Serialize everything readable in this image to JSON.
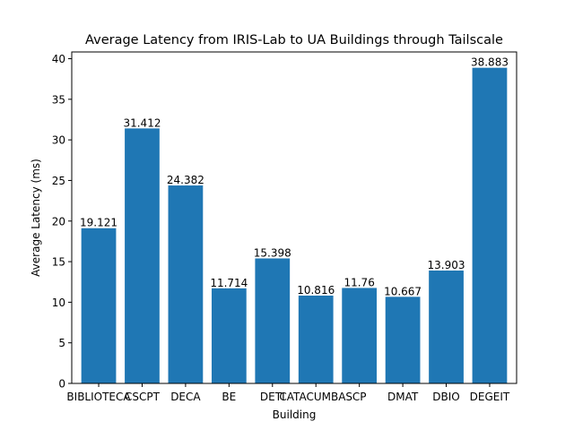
{
  "chart_data": {
    "type": "bar",
    "title": "Average Latency from IRIS-Lab to UA Buildings through Tailscale",
    "xlabel": "Building",
    "ylabel": "Average Latency (ms)",
    "categories": [
      "BIBLIOTECA",
      "CSCPT",
      "DECA",
      "BE",
      "DETI",
      "CATACUMBAS",
      "CP",
      "DMAT",
      "DBIO",
      "DEGEIT"
    ],
    "values": [
      19.121,
      31.412,
      24.382,
      11.714,
      15.398,
      10.816,
      11.76,
      10.667,
      13.903,
      38.883
    ],
    "data_labels": [
      "19.121",
      "31.412",
      "24.382",
      "11.714",
      "15.398",
      "10.816",
      "11.76",
      "10.667",
      "13.903",
      "38.883"
    ],
    "ylim": [
      0,
      40.83
    ],
    "yticks": [
      0,
      5,
      10,
      15,
      20,
      25,
      30,
      35,
      40
    ],
    "bar_color": "#1f77b4",
    "grid": false,
    "legend": "none"
  }
}
